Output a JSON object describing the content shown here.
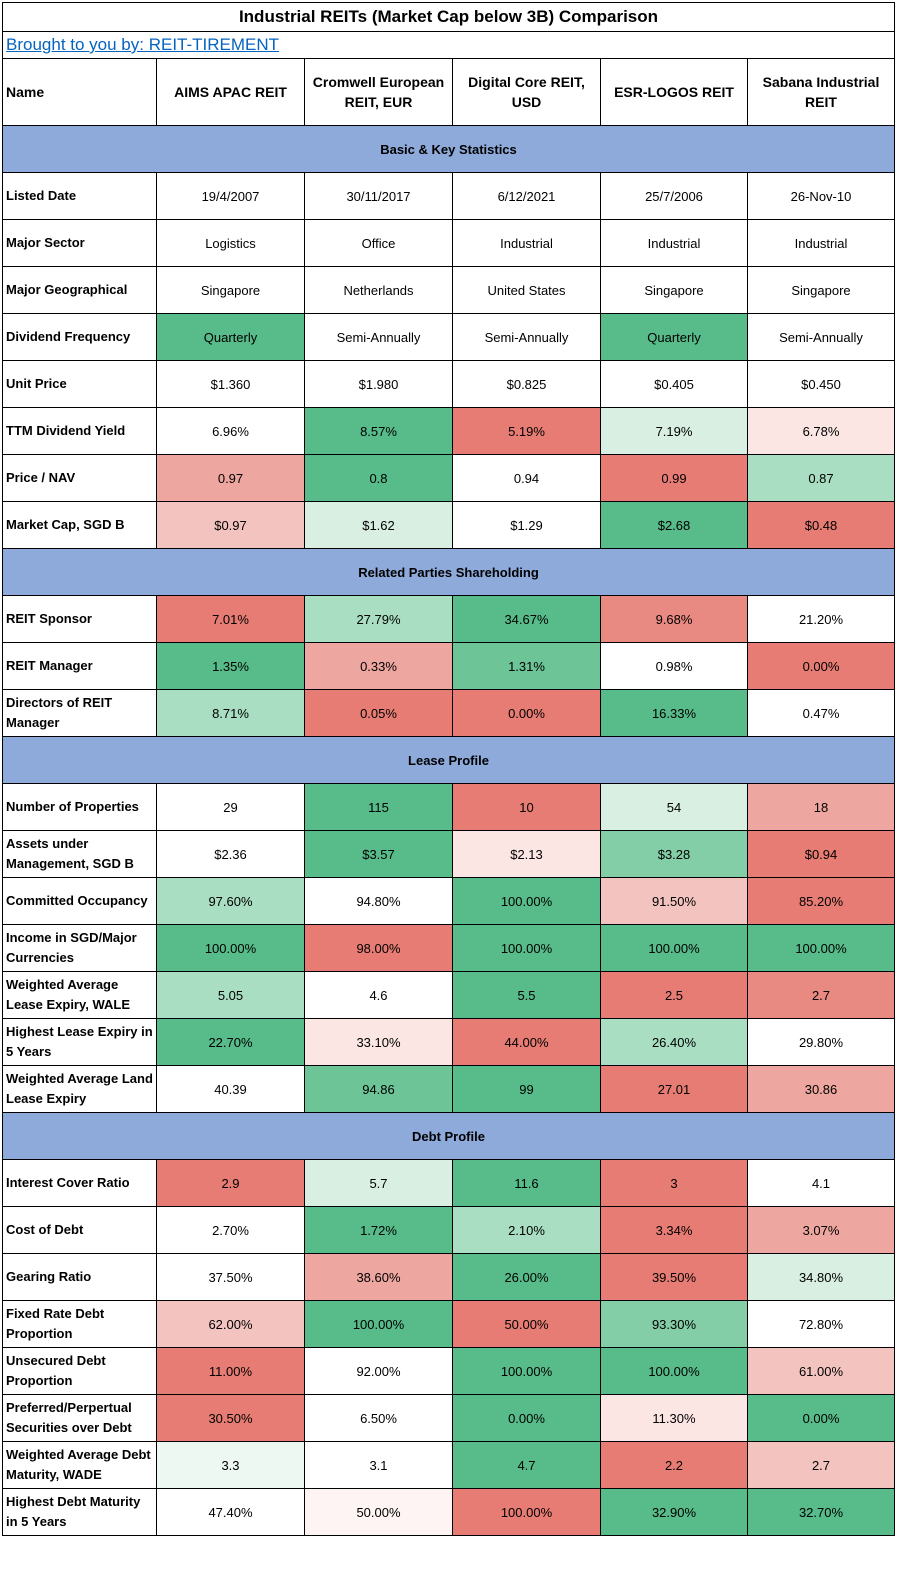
{
  "title": "Industrial REITs (Market Cap below 3B) Comparison",
  "credit": "Brought to you by: REIT-TIREMENT",
  "header": {
    "name_label": "Name",
    "reits": [
      "AIMS APAC REIT",
      "Cromwell European REIT, EUR",
      "Digital Core REIT, USD",
      "ESR-LOGOS REIT",
      "Sabana Industrial REIT"
    ]
  },
  "colors": {
    "section_bg": "#8eaadb",
    "G5": "#57bb8a",
    "G4": "#6cc497",
    "G3": "#84cea7",
    "G2": "#a9dec2",
    "G1": "#d8efe2",
    "G0": "#eef8f2",
    "R5": "#e67c73",
    "R4": "#e98a82",
    "R3": "#eea7a0",
    "R2": "#f3c4bf",
    "R1": "#fbe6e4",
    "R0": "#fdf4f3",
    "W": "#ffffff"
  },
  "sections": [
    {
      "title": "Basic & Key Statistics",
      "rows": [
        {
          "label": "Listed Date",
          "cells": [
            {
              "v": "19/4/2007",
              "c": "W"
            },
            {
              "v": "30/11/2017",
              "c": "W"
            },
            {
              "v": "6/12/2021",
              "c": "W"
            },
            {
              "v": "25/7/2006",
              "c": "W"
            },
            {
              "v": "26-Nov-10",
              "c": "W"
            }
          ]
        },
        {
          "label": "Major Sector",
          "cells": [
            {
              "v": "Logistics",
              "c": "W"
            },
            {
              "v": "Office",
              "c": "W"
            },
            {
              "v": "Industrial",
              "c": "W"
            },
            {
              "v": "Industrial",
              "c": "W"
            },
            {
              "v": "Industrial",
              "c": "W"
            }
          ]
        },
        {
          "label": "Major Geographical",
          "cells": [
            {
              "v": "Singapore",
              "c": "W"
            },
            {
              "v": "Netherlands",
              "c": "W"
            },
            {
              "v": "United States",
              "c": "W"
            },
            {
              "v": "Singapore",
              "c": "W"
            },
            {
              "v": "Singapore",
              "c": "W"
            }
          ]
        },
        {
          "label": "Dividend Frequency",
          "cells": [
            {
              "v": "Quarterly",
              "c": "G5"
            },
            {
              "v": "Semi-Annually",
              "c": "W"
            },
            {
              "v": "Semi-Annually",
              "c": "W"
            },
            {
              "v": "Quarterly",
              "c": "G5"
            },
            {
              "v": "Semi-Annually",
              "c": "W"
            }
          ]
        },
        {
          "label": "Unit Price",
          "cells": [
            {
              "v": "$1.360",
              "c": "W"
            },
            {
              "v": "$1.980",
              "c": "W"
            },
            {
              "v": "$0.825",
              "c": "W"
            },
            {
              "v": "$0.405",
              "c": "W"
            },
            {
              "v": "$0.450",
              "c": "W"
            }
          ]
        },
        {
          "label": "TTM Dividend Yield",
          "cells": [
            {
              "v": "6.96%",
              "c": "W"
            },
            {
              "v": "8.57%",
              "c": "G5"
            },
            {
              "v": "5.19%",
              "c": "R5"
            },
            {
              "v": "7.19%",
              "c": "G1"
            },
            {
              "v": "6.78%",
              "c": "R1"
            }
          ]
        },
        {
          "label": "Price / NAV",
          "cells": [
            {
              "v": "0.97",
              "c": "R3"
            },
            {
              "v": "0.8",
              "c": "G5"
            },
            {
              "v": "0.94",
              "c": "W"
            },
            {
              "v": "0.99",
              "c": "R5"
            },
            {
              "v": "0.87",
              "c": "G2"
            }
          ]
        },
        {
          "label": "Market Cap, SGD B",
          "cells": [
            {
              "v": "$0.97",
              "c": "R2"
            },
            {
              "v": "$1.62",
              "c": "G1"
            },
            {
              "v": "$1.29",
              "c": "W"
            },
            {
              "v": "$2.68",
              "c": "G5"
            },
            {
              "v": "$0.48",
              "c": "R5"
            }
          ]
        }
      ]
    },
    {
      "title": "Related Parties Shareholding",
      "rows": [
        {
          "label": "REIT Sponsor",
          "cells": [
            {
              "v": "7.01%",
              "c": "R5"
            },
            {
              "v": "27.79%",
              "c": "G2"
            },
            {
              "v": "34.67%",
              "c": "G5"
            },
            {
              "v": "9.68%",
              "c": "R4"
            },
            {
              "v": "21.20%",
              "c": "W"
            }
          ]
        },
        {
          "label": "REIT Manager",
          "cells": [
            {
              "v": "1.35%",
              "c": "G5"
            },
            {
              "v": "0.33%",
              "c": "R3"
            },
            {
              "v": "1.31%",
              "c": "G4"
            },
            {
              "v": "0.98%",
              "c": "W"
            },
            {
              "v": "0.00%",
              "c": "R5"
            }
          ]
        },
        {
          "label": "Directors of REIT Manager",
          "cells": [
            {
              "v": "8.71%",
              "c": "G2"
            },
            {
              "v": "0.05%",
              "c": "R5"
            },
            {
              "v": "0.00%",
              "c": "R5"
            },
            {
              "v": "16.33%",
              "c": "G5"
            },
            {
              "v": "0.47%",
              "c": "W"
            }
          ]
        }
      ]
    },
    {
      "title": "Lease Profile",
      "rows": [
        {
          "label": "Number of Properties",
          "cells": [
            {
              "v": "29",
              "c": "W"
            },
            {
              "v": "115",
              "c": "G5"
            },
            {
              "v": "10",
              "c": "R5"
            },
            {
              "v": "54",
              "c": "G1"
            },
            {
              "v": "18",
              "c": "R3"
            }
          ]
        },
        {
          "label": "Assets under Management, SGD B",
          "cells": [
            {
              "v": "$2.36",
              "c": "W"
            },
            {
              "v": "$3.57",
              "c": "G5"
            },
            {
              "v": "$2.13",
              "c": "R1"
            },
            {
              "v": "$3.28",
              "c": "G3"
            },
            {
              "v": "$0.94",
              "c": "R5"
            }
          ]
        },
        {
          "label": "Committed Occupancy",
          "cells": [
            {
              "v": "97.60%",
              "c": "G2"
            },
            {
              "v": "94.80%",
              "c": "W"
            },
            {
              "v": "100.00%",
              "c": "G5"
            },
            {
              "v": "91.50%",
              "c": "R2"
            },
            {
              "v": "85.20%",
              "c": "R5"
            }
          ]
        },
        {
          "label": "Income in SGD/Major Currencies",
          "cells": [
            {
              "v": "100.00%",
              "c": "G5"
            },
            {
              "v": "98.00%",
              "c": "R5"
            },
            {
              "v": "100.00%",
              "c": "G5"
            },
            {
              "v": "100.00%",
              "c": "G5"
            },
            {
              "v": "100.00%",
              "c": "G5"
            }
          ]
        },
        {
          "label": "Weighted Average Lease Expiry, WALE",
          "cells": [
            {
              "v": "5.05",
              "c": "G2"
            },
            {
              "v": "4.6",
              "c": "W"
            },
            {
              "v": "5.5",
              "c": "G5"
            },
            {
              "v": "2.5",
              "c": "R5"
            },
            {
              "v": "2.7",
              "c": "R4"
            }
          ]
        },
        {
          "label": "Highest Lease Expiry in 5 Years",
          "cells": [
            {
              "v": "22.70%",
              "c": "G5"
            },
            {
              "v": "33.10%",
              "c": "R1"
            },
            {
              "v": "44.00%",
              "c": "R5"
            },
            {
              "v": "26.40%",
              "c": "G2"
            },
            {
              "v": "29.80%",
              "c": "W"
            }
          ]
        },
        {
          "label": "Weighted Average Land Lease Expiry",
          "cells": [
            {
              "v": "40.39",
              "c": "W"
            },
            {
              "v": "94.86",
              "c": "G4"
            },
            {
              "v": "99",
              "c": "G5"
            },
            {
              "v": "27.01",
              "c": "R5"
            },
            {
              "v": "30.86",
              "c": "R3"
            }
          ]
        }
      ]
    },
    {
      "title": "Debt Profile",
      "rows": [
        {
          "label": "Interest Cover Ratio",
          "cells": [
            {
              "v": "2.9",
              "c": "R5"
            },
            {
              "v": "5.7",
              "c": "G1"
            },
            {
              "v": "11.6",
              "c": "G5"
            },
            {
              "v": "3",
              "c": "R5"
            },
            {
              "v": "4.1",
              "c": "W"
            }
          ]
        },
        {
          "label": "Cost of Debt",
          "cells": [
            {
              "v": "2.70%",
              "c": "W"
            },
            {
              "v": "1.72%",
              "c": "G5"
            },
            {
              "v": "2.10%",
              "c": "G2"
            },
            {
              "v": "3.34%",
              "c": "R5"
            },
            {
              "v": "3.07%",
              "c": "R3"
            }
          ]
        },
        {
          "label": "Gearing Ratio",
          "cells": [
            {
              "v": "37.50%",
              "c": "W"
            },
            {
              "v": "38.60%",
              "c": "R3"
            },
            {
              "v": "26.00%",
              "c": "G5"
            },
            {
              "v": "39.50%",
              "c": "R5"
            },
            {
              "v": "34.80%",
              "c": "G1"
            }
          ]
        },
        {
          "label": "Fixed Rate Debt Proportion",
          "cells": [
            {
              "v": "62.00%",
              "c": "R2"
            },
            {
              "v": "100.00%",
              "c": "G5"
            },
            {
              "v": "50.00%",
              "c": "R5"
            },
            {
              "v": "93.30%",
              "c": "G3"
            },
            {
              "v": "72.80%",
              "c": "W"
            }
          ]
        },
        {
          "label": "Unsecured Debt Proportion",
          "cells": [
            {
              "v": "11.00%",
              "c": "R5"
            },
            {
              "v": "92.00%",
              "c": "W"
            },
            {
              "v": "100.00%",
              "c": "G5"
            },
            {
              "v": "100.00%",
              "c": "G5"
            },
            {
              "v": "61.00%",
              "c": "R2"
            }
          ]
        },
        {
          "label": "Preferred/Perpertual Securities over Debt",
          "cells": [
            {
              "v": "30.50%",
              "c": "R5"
            },
            {
              "v": "6.50%",
              "c": "W"
            },
            {
              "v": "0.00%",
              "c": "G5"
            },
            {
              "v": "11.30%",
              "c": "R1"
            },
            {
              "v": "0.00%",
              "c": "G5"
            }
          ]
        },
        {
          "label": "Weighted Average Debt Maturity, WADE",
          "cells": [
            {
              "v": "3.3",
              "c": "G0"
            },
            {
              "v": "3.1",
              "c": "W"
            },
            {
              "v": "4.7",
              "c": "G5"
            },
            {
              "v": "2.2",
              "c": "R5"
            },
            {
              "v": "2.7",
              "c": "R2"
            }
          ]
        },
        {
          "label": "Highest Debt Maturity in 5 Years",
          "cells": [
            {
              "v": "47.40%",
              "c": "W"
            },
            {
              "v": "50.00%",
              "c": "R0"
            },
            {
              "v": "100.00%",
              "c": "R5"
            },
            {
              "v": "32.90%",
              "c": "G5"
            },
            {
              "v": "32.70%",
              "c": "G5"
            }
          ]
        }
      ]
    }
  ]
}
